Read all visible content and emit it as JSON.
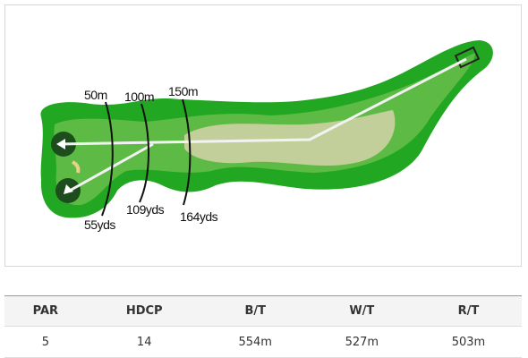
{
  "hole_map": {
    "distance_labels": [
      "50m",
      "100m",
      "150m"
    ],
    "yardage_labels": [
      "55yds",
      "109yds",
      "164yds"
    ]
  },
  "table": {
    "headers": [
      "PAR",
      "HDCP",
      "B/T",
      "W/T",
      "R/T"
    ],
    "rows": [
      [
        "5",
        "14",
        "554m",
        "527m",
        "503m"
      ]
    ]
  }
}
